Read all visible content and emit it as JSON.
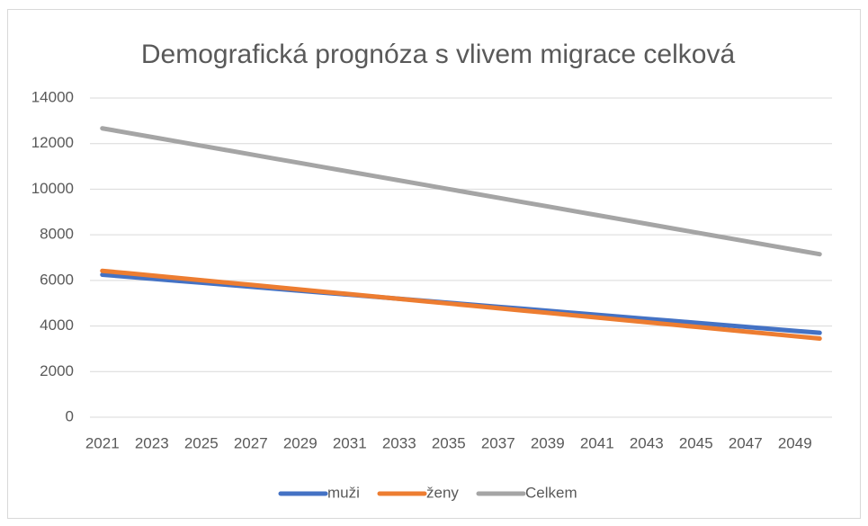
{
  "chart_data": {
    "type": "line",
    "title": "Demografická prognóza s vlivem migrace celková",
    "categories": [
      "2021",
      null,
      "2023",
      null,
      "2025",
      null,
      "2027",
      null,
      "2029",
      null,
      "2031",
      null,
      "2033",
      null,
      "2035",
      null,
      "2037",
      null,
      "2039",
      null,
      "2041",
      null,
      "2043",
      null,
      "2045",
      null,
      "2047",
      null,
      "2049",
      null
    ],
    "series": [
      {
        "name": "muži",
        "color": "#4472c4",
        "values": [
          6250,
          6162,
          6074,
          5986,
          5898,
          5810,
          5722,
          5634,
          5546,
          5458,
          5371,
          5283,
          5195,
          5107,
          5019,
          4931,
          4843,
          4755,
          4667,
          4579,
          4492,
          4404,
          4316,
          4228,
          4140,
          4052,
          3964,
          3876,
          3788,
          3700
        ]
      },
      {
        "name": "ženy",
        "color": "#ed7d31",
        "values": [
          6420,
          6318,
          6215,
          6113,
          6010,
          5908,
          5806,
          5703,
          5601,
          5498,
          5396,
          5293,
          5191,
          5089,
          4986,
          4884,
          4781,
          4679,
          4577,
          4474,
          4372,
          4269,
          4167,
          4064,
          3962,
          3860,
          3757,
          3655,
          3552,
          3450
        ]
      },
      {
        "name": "Celkem",
        "color": "#a5a5a5",
        "values": [
          12670,
          12480,
          12289,
          12099,
          11908,
          11718,
          11528,
          11337,
          11147,
          10956,
          10767,
          10576,
          10386,
          10196,
          10005,
          9815,
          9624,
          9434,
          9244,
          9053,
          8864,
          8673,
          8483,
          8292,
          8102,
          7912,
          7721,
          7531,
          7340,
          7150
        ]
      }
    ],
    "ylim": [
      0,
      14000
    ],
    "yticks": [
      0,
      2000,
      4000,
      6000,
      8000,
      10000,
      12000,
      14000
    ],
    "grid": true,
    "legend": "bottom"
  }
}
